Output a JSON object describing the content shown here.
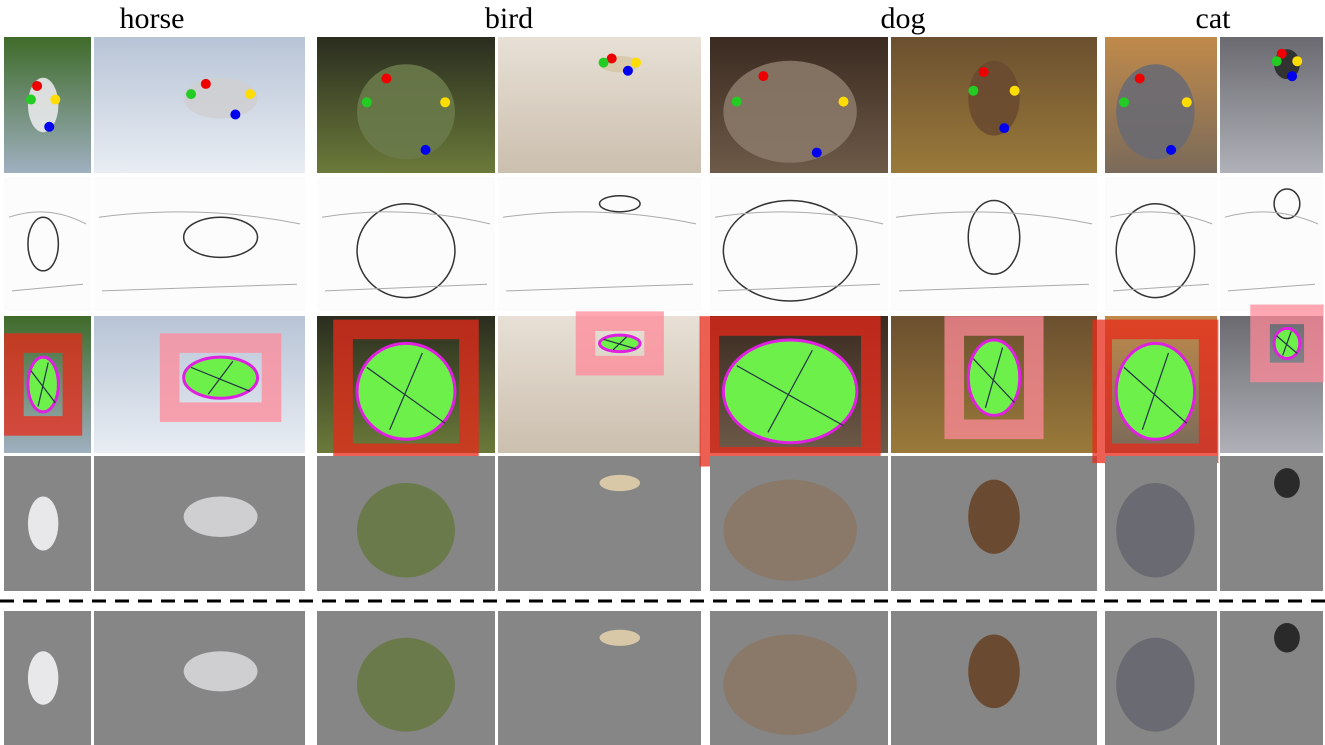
{
  "columns": [
    {
      "label": "horse"
    },
    {
      "label": "bird"
    },
    {
      "label": "dog"
    },
    {
      "label": "cat"
    }
  ]
}
